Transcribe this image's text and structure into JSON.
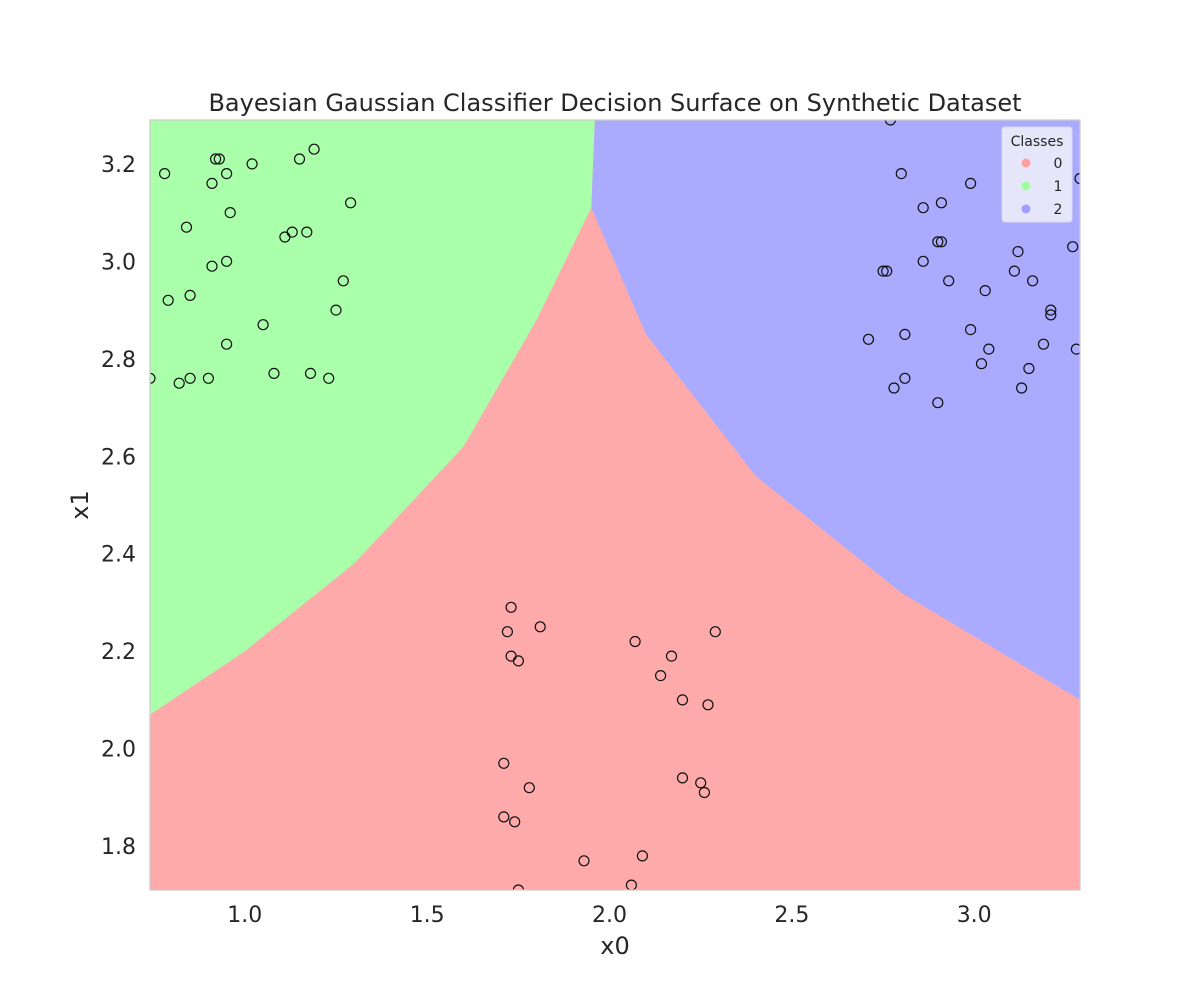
{
  "chart_data": {
    "type": "scatter",
    "title": "Bayesian Gaussian Classifier Decision Surface on Synthetic Dataset",
    "xlabel": "x0",
    "ylabel": "x1",
    "xlim": [
      0.74,
      3.29
    ],
    "ylim": [
      1.71,
      3.29
    ],
    "xticks": [
      1.0,
      1.5,
      2.0,
      2.5,
      3.0
    ],
    "yticks": [
      1.8,
      2.0,
      2.2,
      2.4,
      2.6,
      2.8,
      3.0,
      3.2
    ],
    "grid": false,
    "legend": {
      "title": "Classes",
      "placement": "top-right",
      "entries": [
        "0",
        "1",
        "2"
      ]
    },
    "colors": {
      "region_0": "#ffaaaa",
      "region_1": "#aaffaa",
      "region_2": "#aaaaff",
      "point_edge": "#111111",
      "legend_0": "#ff9f9f",
      "legend_1": "#9fff9f",
      "legend_2": "#9f9fff"
    },
    "decision_regions": {
      "type": "gaussian-regions",
      "class_1_upper_left_boundary": [
        [
          0.74,
          2.07
        ],
        [
          1.0,
          2.2
        ],
        [
          1.3,
          2.38
        ],
        [
          1.6,
          2.62
        ],
        [
          1.8,
          2.88
        ],
        [
          1.95,
          3.11
        ]
      ],
      "class_1_class_2_boundary_x": 1.96,
      "class_2_upper_right_boundary": [
        [
          1.95,
          3.11
        ],
        [
          2.1,
          2.85
        ],
        [
          2.4,
          2.56
        ],
        [
          2.8,
          2.32
        ],
        [
          3.29,
          2.1
        ]
      ]
    },
    "series": [
      {
        "name": "0",
        "points": [
          [
            1.73,
            2.29
          ],
          [
            1.81,
            2.25
          ],
          [
            1.72,
            2.24
          ],
          [
            2.29,
            2.24
          ],
          [
            2.07,
            2.22
          ],
          [
            1.73,
            2.19
          ],
          [
            2.17,
            2.19
          ],
          [
            1.75,
            2.18
          ],
          [
            2.14,
            2.15
          ],
          [
            2.2,
            2.1
          ],
          [
            2.27,
            2.09
          ],
          [
            1.71,
            1.97
          ],
          [
            2.2,
            1.94
          ],
          [
            1.78,
            1.92
          ],
          [
            2.25,
            1.93
          ],
          [
            2.26,
            1.91
          ],
          [
            1.71,
            1.86
          ],
          [
            1.74,
            1.85
          ],
          [
            1.93,
            1.77
          ],
          [
            2.09,
            1.78
          ],
          [
            2.06,
            1.72
          ],
          [
            1.75,
            1.71
          ]
        ]
      },
      {
        "name": "1",
        "points": [
          [
            0.78,
            3.18
          ],
          [
            0.92,
            3.21
          ],
          [
            0.93,
            3.21
          ],
          [
            0.95,
            3.18
          ],
          [
            1.02,
            3.2
          ],
          [
            1.15,
            3.21
          ],
          [
            1.19,
            3.23
          ],
          [
            0.91,
            3.16
          ],
          [
            0.96,
            3.1
          ],
          [
            0.84,
            3.07
          ],
          [
            1.29,
            3.12
          ],
          [
            1.11,
            3.05
          ],
          [
            1.13,
            3.06
          ],
          [
            1.17,
            3.06
          ],
          [
            0.91,
            2.99
          ],
          [
            0.95,
            3.0
          ],
          [
            1.27,
            2.96
          ],
          [
            0.79,
            2.92
          ],
          [
            0.85,
            2.93
          ],
          [
            1.25,
            2.9
          ],
          [
            1.05,
            2.87
          ],
          [
            0.95,
            2.83
          ],
          [
            0.74,
            2.76
          ],
          [
            0.85,
            2.76
          ],
          [
            0.9,
            2.76
          ],
          [
            1.08,
            2.77
          ],
          [
            1.18,
            2.77
          ],
          [
            1.23,
            2.76
          ],
          [
            0.82,
            2.75
          ]
        ]
      },
      {
        "name": "2",
        "points": [
          [
            2.77,
            3.29
          ],
          [
            2.8,
            3.18
          ],
          [
            2.99,
            3.16
          ],
          [
            3.29,
            3.17
          ],
          [
            2.86,
            3.11
          ],
          [
            2.91,
            3.12
          ],
          [
            2.9,
            3.04
          ],
          [
            2.91,
            3.04
          ],
          [
            3.12,
            3.02
          ],
          [
            3.27,
            3.03
          ],
          [
            2.86,
            3.0
          ],
          [
            2.75,
            2.98
          ],
          [
            2.76,
            2.98
          ],
          [
            3.11,
            2.98
          ],
          [
            2.93,
            2.96
          ],
          [
            3.16,
            2.96
          ],
          [
            3.03,
            2.94
          ],
          [
            3.21,
            2.9
          ],
          [
            3.21,
            2.89
          ],
          [
            2.99,
            2.86
          ],
          [
            2.71,
            2.84
          ],
          [
            2.81,
            2.85
          ],
          [
            3.19,
            2.83
          ],
          [
            3.28,
            2.82
          ],
          [
            3.04,
            2.82
          ],
          [
            3.02,
            2.79
          ],
          [
            3.15,
            2.78
          ],
          [
            2.81,
            2.76
          ],
          [
            2.78,
            2.74
          ],
          [
            3.13,
            2.74
          ],
          [
            2.9,
            2.71
          ]
        ]
      }
    ]
  }
}
